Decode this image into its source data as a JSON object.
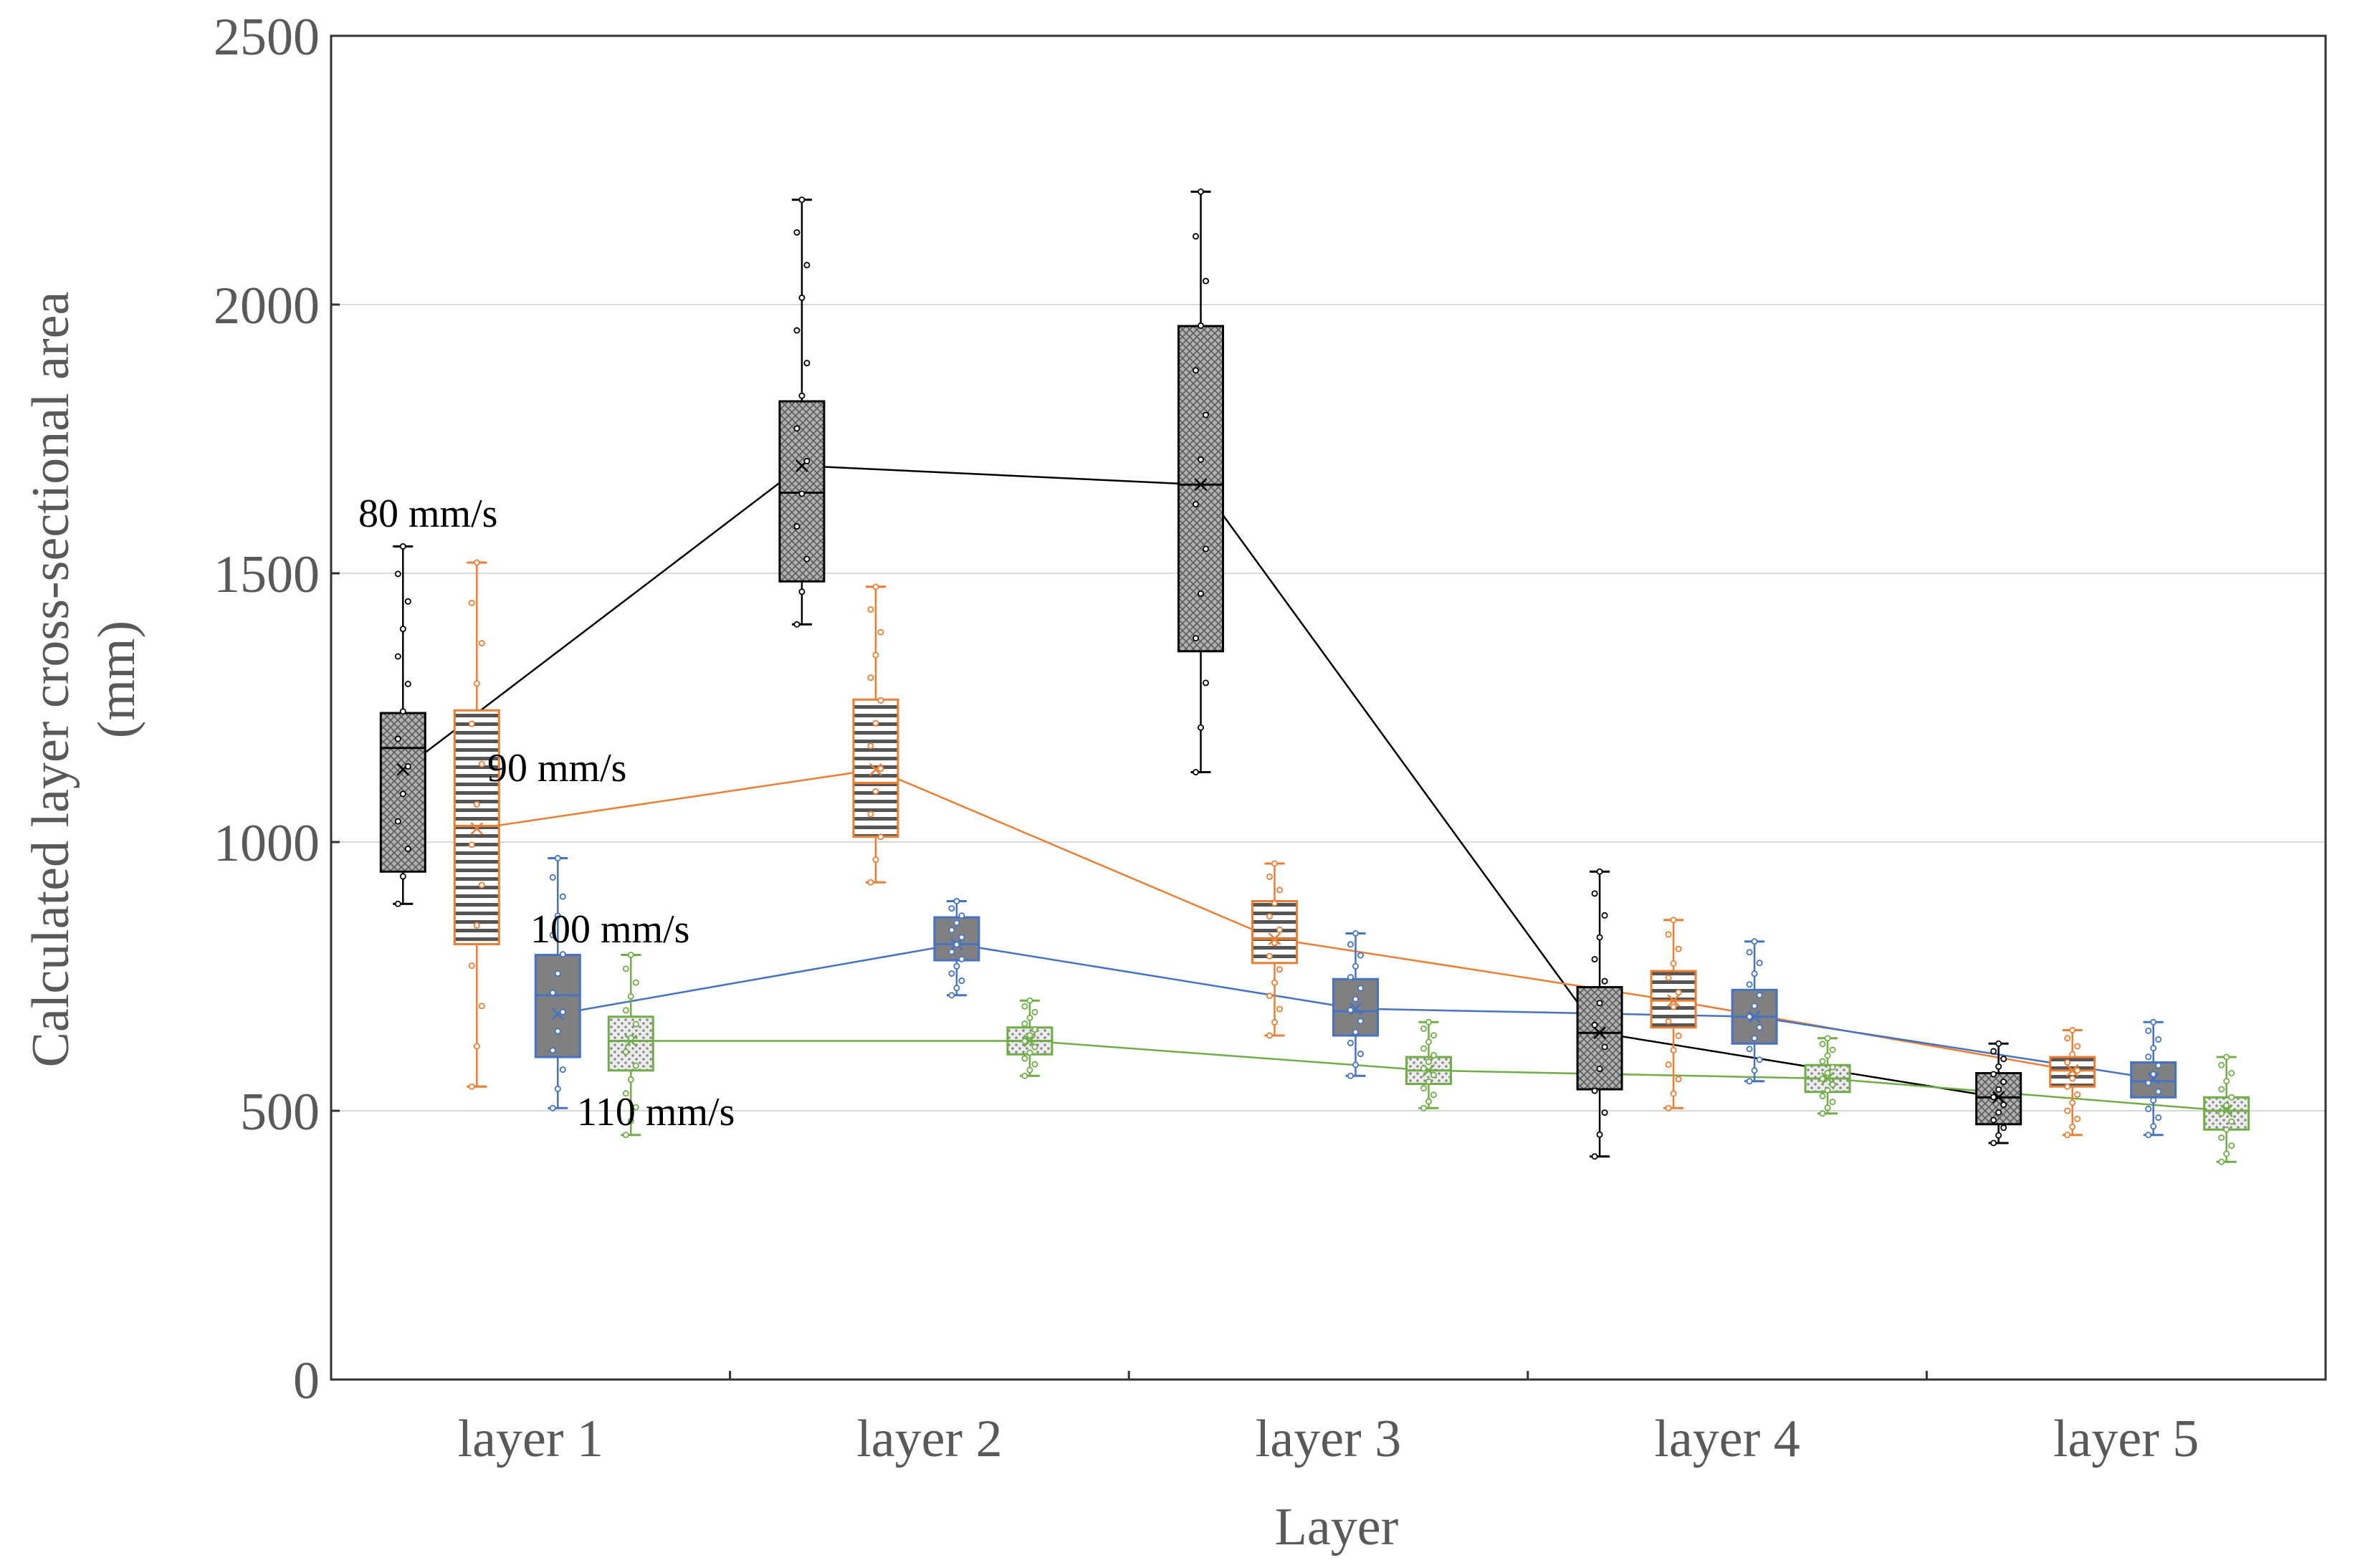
{
  "chart_data": {
    "type": "box",
    "title": "",
    "xlabel": "Layer",
    "ylabel": "Calculated layer cross-sectional area",
    "ylabel_unit": "(mm)",
    "ylim": [
      0,
      2500
    ],
    "yticks": [
      0,
      500,
      1000,
      1500,
      2000,
      2500
    ],
    "y_tick_labels": [
      "0",
      "500",
      "1000",
      "1500",
      "2000",
      "2500"
    ],
    "gridlines": "horizontal",
    "categories": [
      "layer 1",
      "layer 2",
      "layer 3",
      "layer 4",
      "layer 5"
    ],
    "series": [
      {
        "name": "80 mm/s",
        "color": "#000000",
        "fill": "#a6a6a6",
        "pattern": "crosshatch",
        "boxes": [
          {
            "min": 885,
            "q1": 945,
            "median": 1175,
            "q3": 1240,
            "max": 1550,
            "mean": 1135
          },
          {
            "min": 1405,
            "q1": 1485,
            "median": 1650,
            "q3": 1820,
            "max": 2195,
            "mean": 1700
          },
          {
            "min": 1130,
            "q1": 1355,
            "median": 1665,
            "q3": 1960,
            "max": 2210,
            "mean": 1665
          },
          {
            "min": 415,
            "q1": 540,
            "median": 645,
            "q3": 730,
            "max": 945,
            "mean": 645
          },
          {
            "min": 440,
            "q1": 475,
            "median": 525,
            "q3": 570,
            "max": 625,
            "mean": 525
          }
        ]
      },
      {
        "name": "90 mm/s",
        "color": "#ed7d31",
        "fill": "#ffffff",
        "pattern": "horizontal-stripes",
        "boxes": [
          {
            "min": 545,
            "q1": 810,
            "median": 1030,
            "q3": 1245,
            "max": 1520,
            "mean": 1025
          },
          {
            "min": 925,
            "q1": 1010,
            "median": 1110,
            "q3": 1265,
            "max": 1475,
            "mean": 1135
          },
          {
            "min": 640,
            "q1": 775,
            "median": 820,
            "q3": 890,
            "max": 960,
            "mean": 820
          },
          {
            "min": 505,
            "q1": 655,
            "median": 705,
            "q3": 760,
            "max": 855,
            "mean": 705
          },
          {
            "min": 455,
            "q1": 545,
            "median": 575,
            "q3": 600,
            "max": 650,
            "mean": 575
          }
        ]
      },
      {
        "name": "100 mm/s",
        "color": "#4472c4",
        "fill": "#808080",
        "pattern": "solid",
        "boxes": [
          {
            "min": 505,
            "q1": 600,
            "median": 715,
            "q3": 790,
            "max": 970,
            "mean": 680
          },
          {
            "min": 715,
            "q1": 780,
            "median": 810,
            "q3": 860,
            "max": 890,
            "mean": 810
          },
          {
            "min": 565,
            "q1": 640,
            "median": 685,
            "q3": 745,
            "max": 830,
            "mean": 690
          },
          {
            "min": 555,
            "q1": 625,
            "median": 675,
            "q3": 725,
            "max": 815,
            "mean": 675
          },
          {
            "min": 455,
            "q1": 525,
            "median": 555,
            "q3": 590,
            "max": 665,
            "mean": 560
          }
        ]
      },
      {
        "name": "110 mm/s",
        "color": "#70ad47",
        "fill": "#e6e6e6",
        "pattern": "dotted",
        "boxes": [
          {
            "min": 455,
            "q1": 575,
            "median": 630,
            "q3": 675,
            "max": 790,
            "mean": 630
          },
          {
            "min": 565,
            "q1": 605,
            "median": 630,
            "q3": 655,
            "max": 705,
            "mean": 630
          },
          {
            "min": 505,
            "q1": 550,
            "median": 575,
            "q3": 600,
            "max": 665,
            "mean": 575
          },
          {
            "min": 495,
            "q1": 535,
            "median": 560,
            "q3": 585,
            "max": 635,
            "mean": 560
          },
          {
            "min": 405,
            "q1": 465,
            "median": 500,
            "q3": 525,
            "max": 600,
            "mean": 500
          }
        ]
      }
    ],
    "annotations": [
      {
        "text": "80 mm/s",
        "series": 0
      },
      {
        "text": "90 mm/s",
        "series": 1
      },
      {
        "text": "100 mm/s",
        "series": 2
      },
      {
        "text": "110 mm/s",
        "series": 3
      }
    ]
  }
}
